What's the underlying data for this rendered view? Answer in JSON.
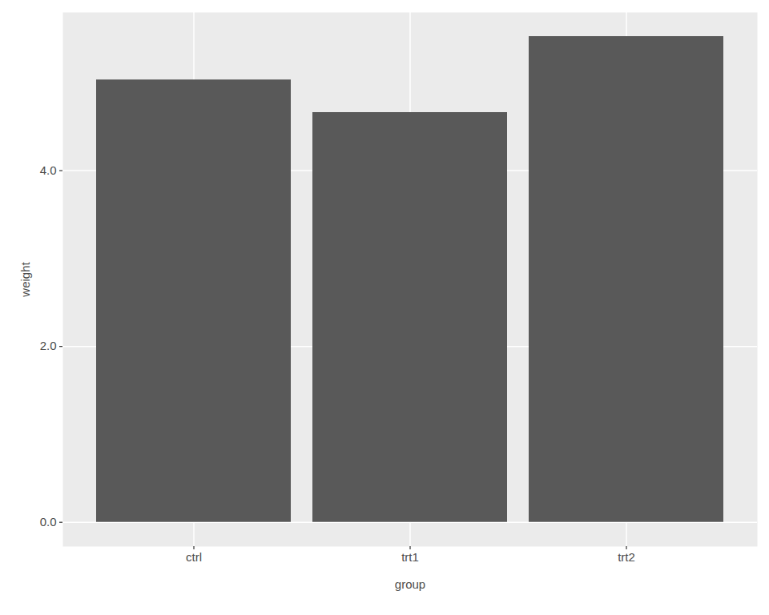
{
  "chart_data": {
    "type": "bar",
    "x_label": "group",
    "y_label": "weight",
    "categories": [
      "ctrl",
      "trt1",
      "trt2"
    ],
    "values": [
      5.032,
      4.661,
      5.526
    ],
    "color": "#595959",
    "ylim": [
      -0.276,
      5.8
    ],
    "yticks": [
      0,
      2,
      4
    ],
    "grid": true
  }
}
